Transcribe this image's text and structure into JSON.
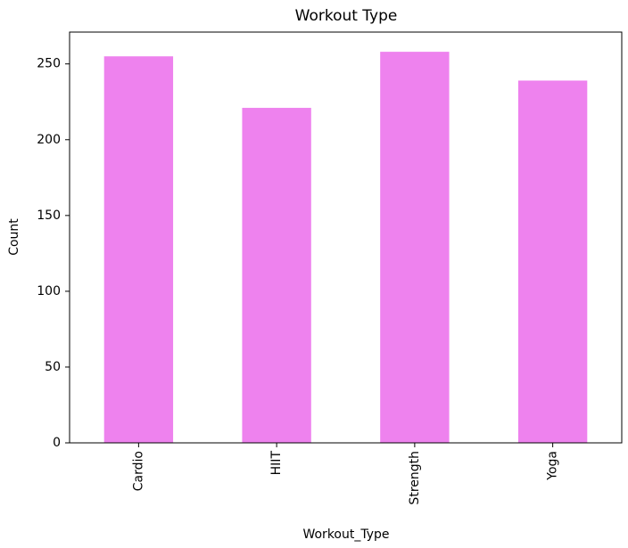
{
  "chart_data": {
    "type": "bar",
    "title": "Workout Type",
    "x_label": "Workout_Type",
    "y_label": "Count",
    "categories": [
      "Cardio",
      "HIIT",
      "Strength",
      "Yoga"
    ],
    "values": [
      255,
      221,
      258,
      239
    ],
    "color": "#ee82ee",
    "ylim": [
      0,
      271
    ],
    "yticks": [
      0,
      50,
      100,
      150,
      200,
      250
    ],
    "grid": false
  }
}
